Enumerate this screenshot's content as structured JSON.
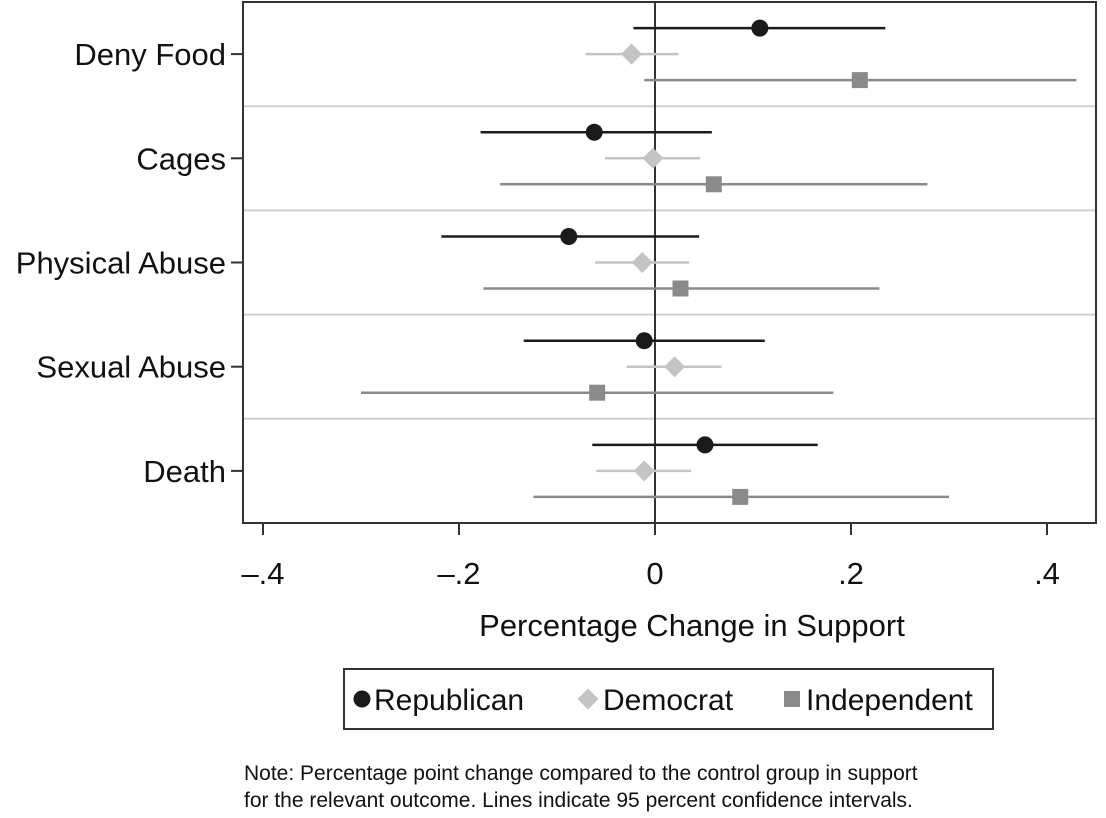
{
  "chart_data": {
    "type": "dot-and-whisker",
    "xlabel": "Percentage Change in Support",
    "xlim": [
      -0.42,
      0.43
    ],
    "xticks": [
      -0.4,
      -0.2,
      0,
      0.2,
      0.4
    ],
    "xtick_labels": [
      "–.4",
      "–.2",
      "0",
      ".2",
      ".4"
    ],
    "grid": "horizontal separators between categories",
    "categories": [
      "Deny Food",
      "Cages",
      "Physical Abuse",
      "Sexual Abuse",
      "Death"
    ],
    "series": [
      {
        "name": "Republican",
        "marker": "circle",
        "color": "#1a1a1a",
        "estimates": [
          0.107,
          -0.062,
          -0.088,
          -0.011,
          0.051
        ],
        "ci_low": [
          -0.022,
          -0.178,
          -0.218,
          -0.134,
          -0.064
        ],
        "ci_high": [
          0.235,
          0.058,
          0.045,
          0.112,
          0.166
        ]
      },
      {
        "name": "Democrat",
        "marker": "diamond",
        "color": "#c4c4c4",
        "estimates": [
          -0.024,
          -0.002,
          -0.013,
          0.02,
          -0.011
        ],
        "ci_low": [
          -0.071,
          -0.051,
          -0.061,
          -0.029,
          -0.06
        ],
        "ci_high": [
          0.024,
          0.046,
          0.035,
          0.068,
          0.037
        ]
      },
      {
        "name": "Independent",
        "marker": "square",
        "color": "#8a8a8a",
        "estimates": [
          0.209,
          0.06,
          0.026,
          -0.059,
          0.087
        ],
        "ci_low": [
          -0.011,
          -0.158,
          -0.175,
          -0.3,
          -0.124
        ],
        "ci_high": [
          0.43,
          0.278,
          0.229,
          0.182,
          0.3
        ]
      }
    ],
    "legend_position": "bottom-center"
  },
  "note": {
    "line1": "Note: Percentage point change compared to the control group in support",
    "line2": "for the relevant outcome. Lines indicate 95 percent confidence intervals."
  }
}
